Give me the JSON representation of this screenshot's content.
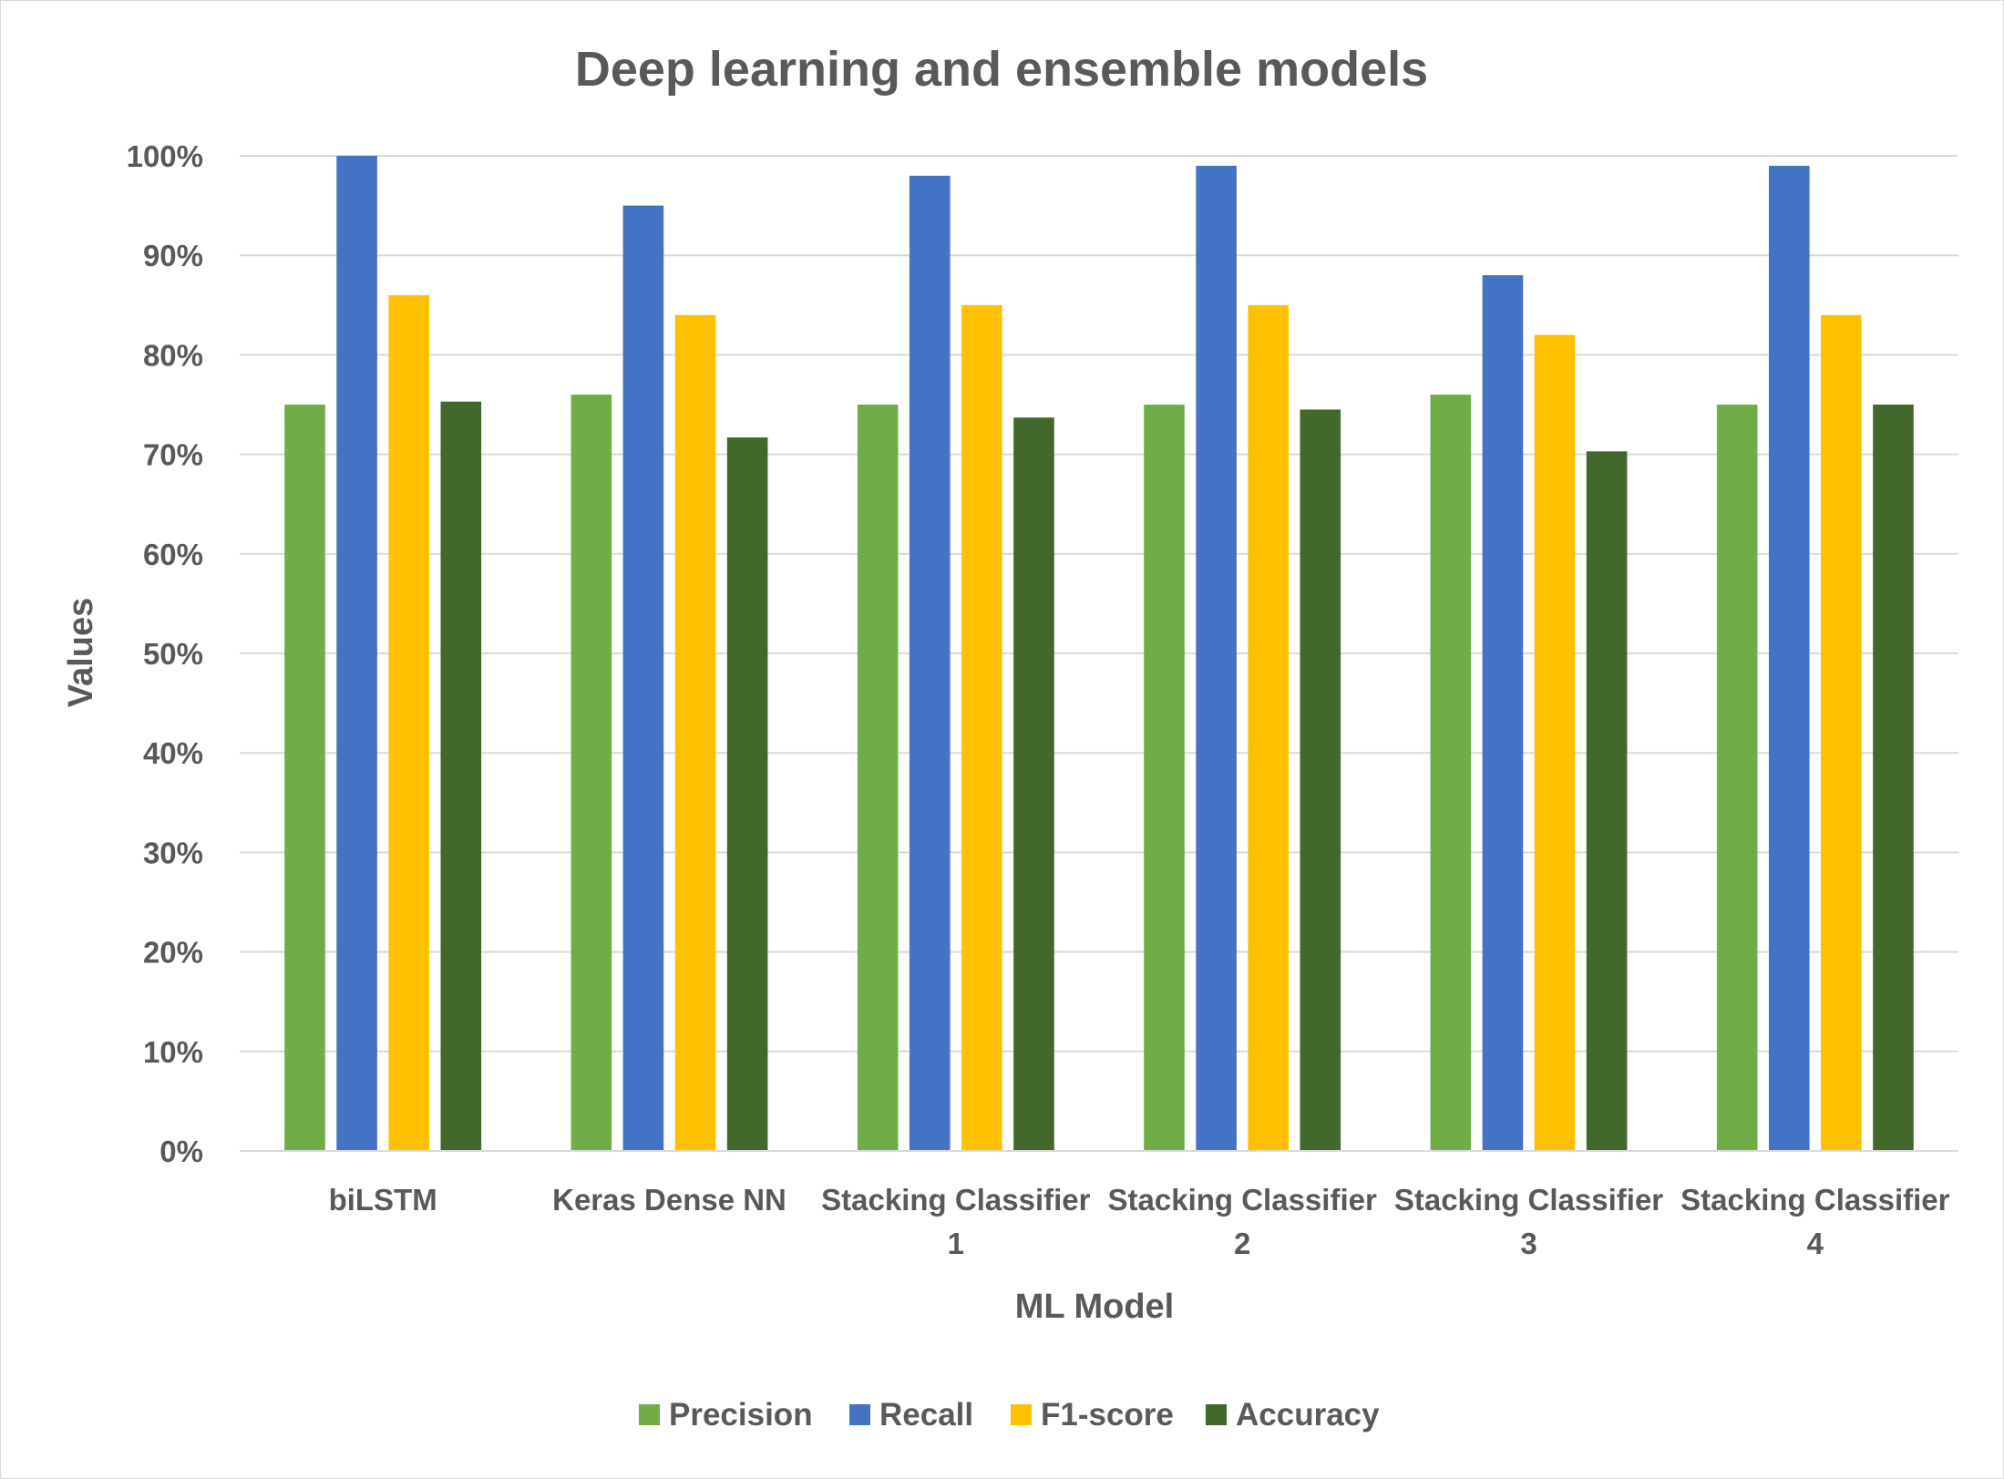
{
  "chart_data": {
    "type": "bar",
    "title": "Deep learning and ensemble models",
    "xlabel": "ML Model",
    "ylabel": "Values",
    "categories": [
      [
        "biLSTM"
      ],
      [
        "Keras Dense NN"
      ],
      [
        "Stacking Classifier",
        "1"
      ],
      [
        "Stacking Classifier",
        "2"
      ],
      [
        "Stacking Classifier",
        "3"
      ],
      [
        "Stacking Classifier",
        "4"
      ]
    ],
    "ylim": [
      0,
      1
    ],
    "yticks": [
      0,
      0.1,
      0.2,
      0.3,
      0.4,
      0.5,
      0.6,
      0.7,
      0.8,
      0.9,
      1.0
    ],
    "ytick_labels": [
      "0%",
      "10%",
      "20%",
      "30%",
      "40%",
      "50%",
      "60%",
      "70%",
      "80%",
      "90%",
      "100%"
    ],
    "grid": true,
    "legend_position": "bottom",
    "series": [
      {
        "name": "Precision",
        "color": "#70ad47",
        "values": [
          0.75,
          0.76,
          0.75,
          0.75,
          0.76,
          0.75
        ]
      },
      {
        "name": "Recall",
        "color": "#4472c4",
        "values": [
          1.0,
          0.95,
          0.98,
          0.99,
          0.88,
          0.99
        ]
      },
      {
        "name": "F1-score",
        "color": "#ffc000",
        "values": [
          0.86,
          0.84,
          0.85,
          0.85,
          0.82,
          0.84
        ]
      },
      {
        "name": "Accuracy",
        "color": "#43682b",
        "values": [
          0.753,
          0.717,
          0.737,
          0.745,
          0.703,
          0.75
        ]
      }
    ]
  }
}
